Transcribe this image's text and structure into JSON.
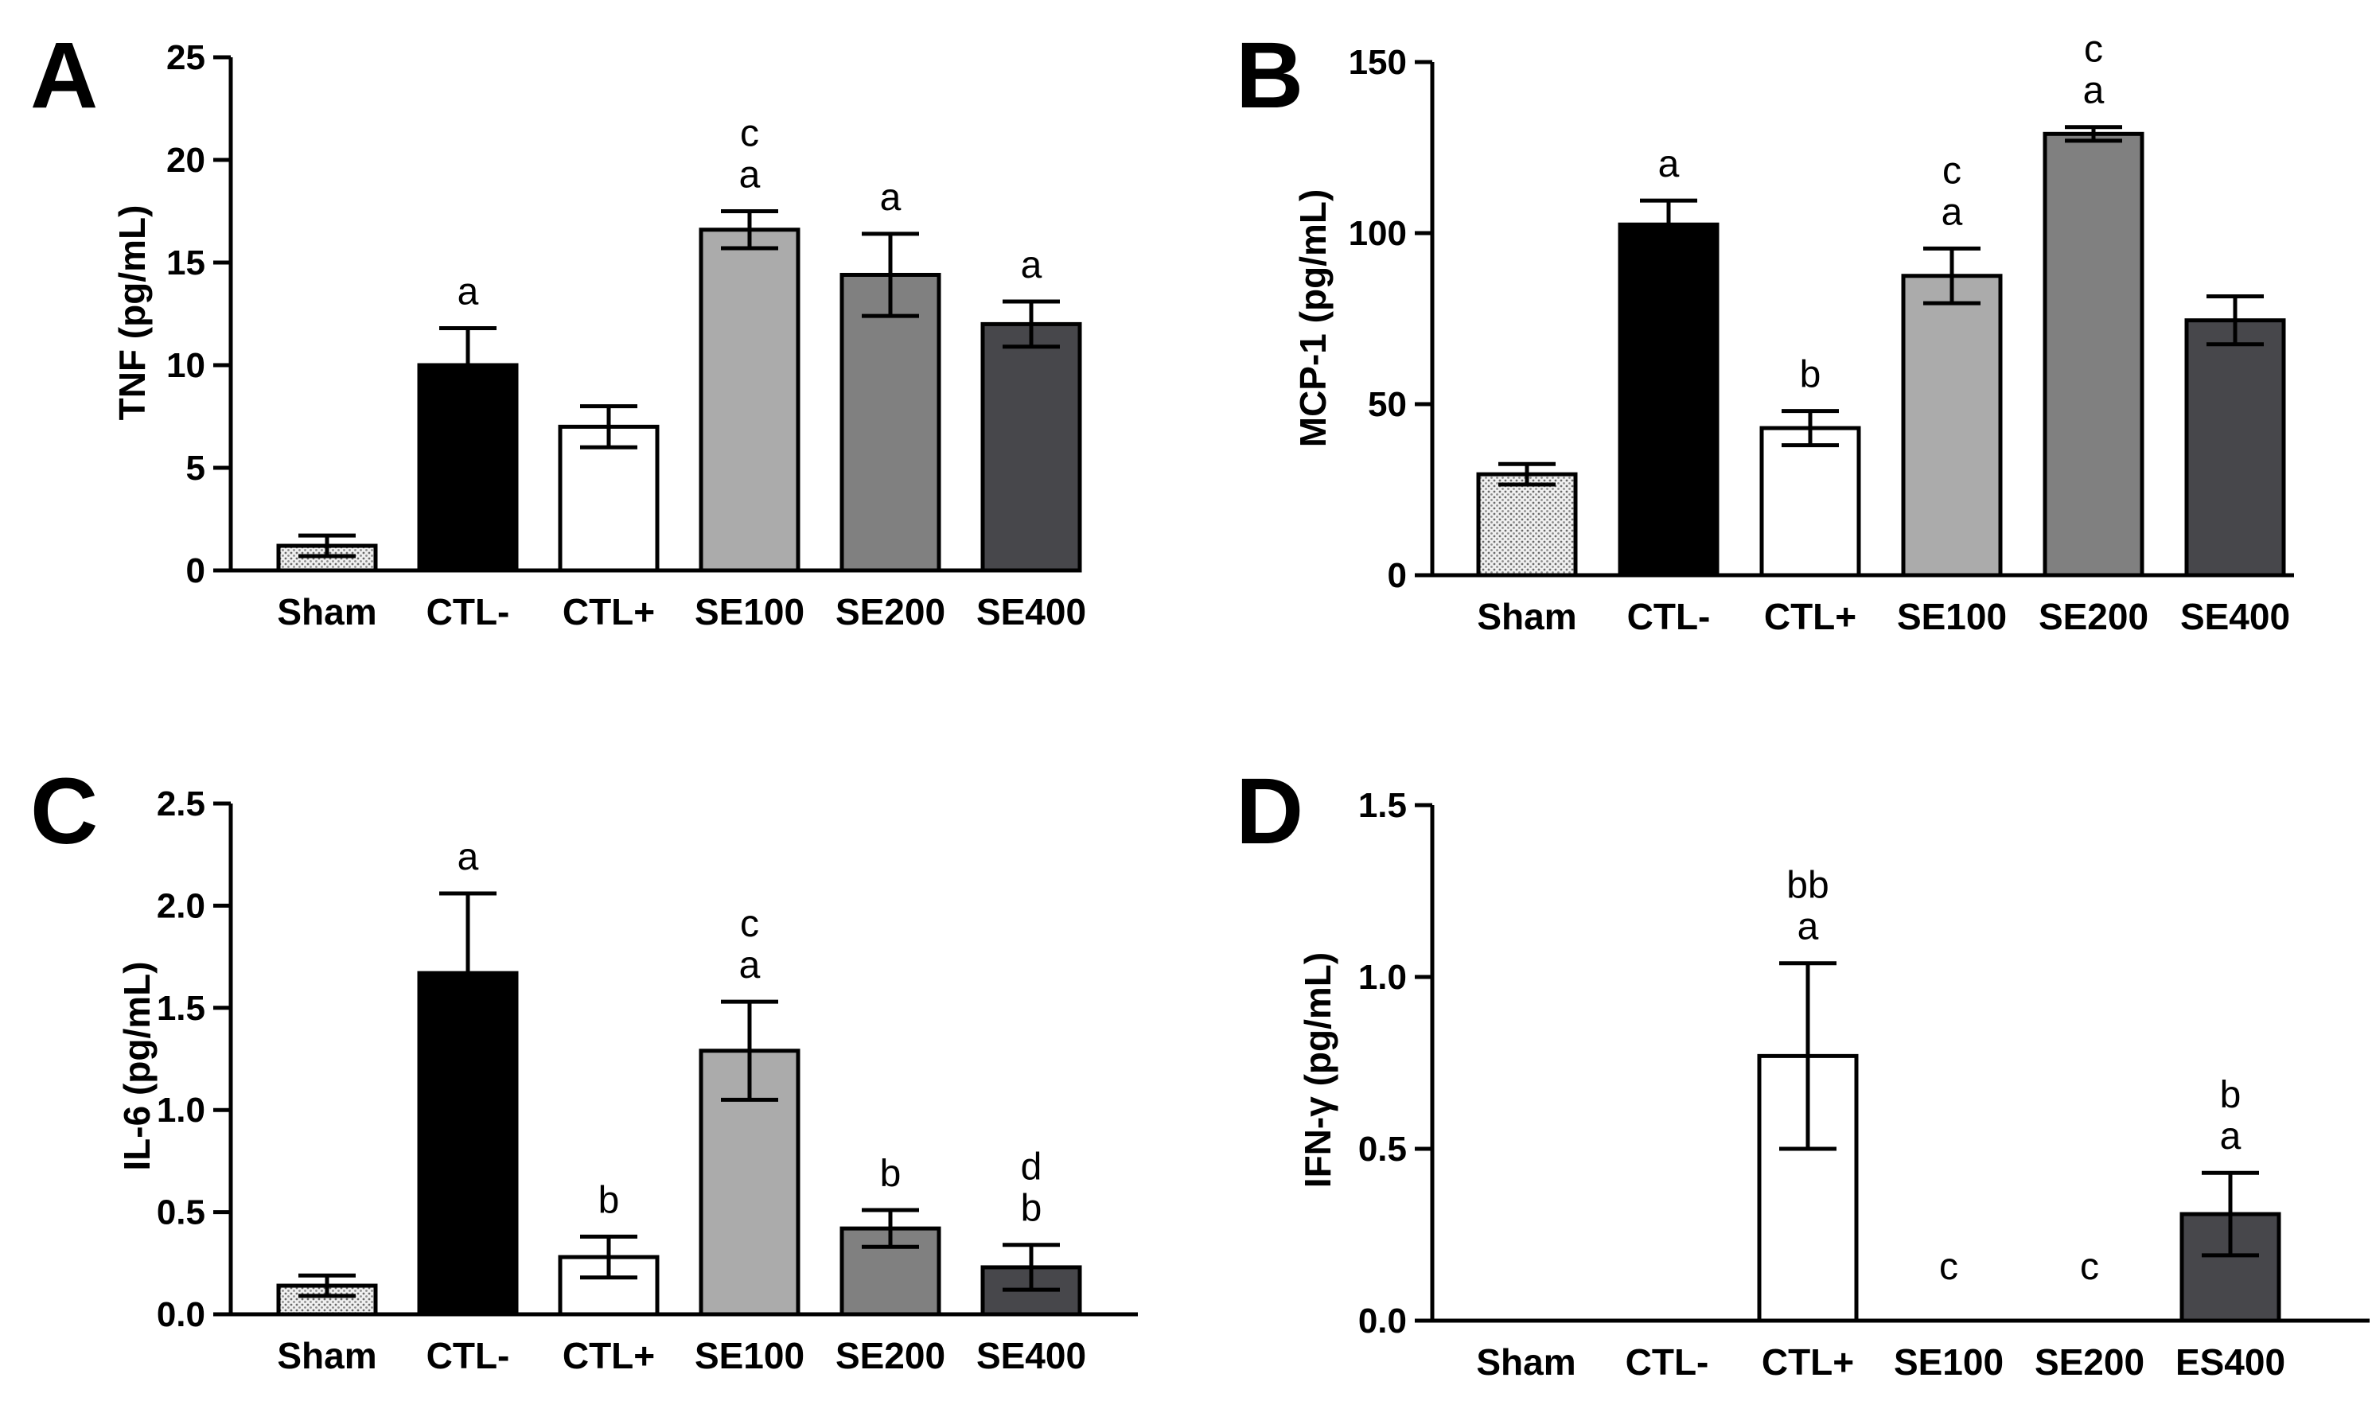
{
  "colors": {
    "Sham": "dotted-gray",
    "CTL-": "#000000",
    "CTL+": "#ffffff",
    "SE100": "#ababab",
    "SE200": "#808080",
    "SE400": "#47474b"
  },
  "chart_data": [
    {
      "panel": "A",
      "type": "bar",
      "ylabel": "TNF (pg/mL)",
      "ylim": [
        0,
        25
      ],
      "yticks": [
        "0",
        "5",
        "10",
        "15",
        "20",
        "25"
      ],
      "categories": [
        "Sham",
        "CTL-",
        "CTL+",
        "SE100",
        "SE200",
        "SE400"
      ],
      "values": [
        1.2,
        10.0,
        7.0,
        16.6,
        14.4,
        12.0
      ],
      "errors": [
        0.5,
        1.8,
        1.0,
        0.9,
        2.0,
        1.1
      ],
      "labels": [
        [],
        [
          "a"
        ],
        [],
        [
          "c",
          "a"
        ],
        [
          "a"
        ],
        [
          "a"
        ]
      ]
    },
    {
      "panel": "B",
      "type": "bar",
      "ylabel": "MCP-1 (pg/mL)",
      "ylim": [
        0,
        150
      ],
      "yticks": [
        "0",
        "50",
        "100",
        "150"
      ],
      "categories": [
        "Sham",
        "CTL-",
        "CTL+",
        "SE100",
        "SE200",
        "SE400"
      ],
      "values": [
        29.5,
        102.5,
        43.0,
        87.5,
        129.0,
        74.5
      ],
      "errors": [
        3.0,
        7.0,
        5.0,
        8.0,
        2.0,
        7.0
      ],
      "labels": [
        [],
        [
          "a"
        ],
        [
          "b"
        ],
        [
          "c",
          "a"
        ],
        [
          "c",
          "a"
        ],
        []
      ]
    },
    {
      "panel": "C",
      "type": "bar",
      "ylabel": "IL-6 (pg/mL)",
      "ylim": [
        0,
        2.5
      ],
      "yticks": [
        "0.0",
        "0.5",
        "1.0",
        "1.5",
        "2.0",
        "2.5"
      ],
      "categories": [
        "Sham",
        "CTL-",
        "CTL+",
        "SE100",
        "SE200",
        "SE400"
      ],
      "values": [
        0.14,
        1.67,
        0.28,
        1.29,
        0.42,
        0.23
      ],
      "errors": [
        0.05,
        0.39,
        0.1,
        0.24,
        0.09,
        0.11
      ],
      "labels": [
        [],
        [
          "a"
        ],
        [
          "b"
        ],
        [
          "c",
          "a"
        ],
        [
          "b"
        ],
        [
          "d",
          "b"
        ]
      ]
    },
    {
      "panel": "D",
      "type": "bar",
      "ylabel": "IFN-γ (pg/mL)",
      "ylim": [
        0,
        1.5
      ],
      "yticks": [
        "0.0",
        "0.5",
        "1.0",
        "1.5"
      ],
      "categories": [
        "Sham",
        "CTL-",
        "CTL+",
        "SE100",
        "SE200",
        "ES400"
      ],
      "values": [
        0,
        0,
        0.77,
        0,
        0,
        0.31
      ],
      "errors": [
        0,
        0,
        0.27,
        0,
        0,
        0.12
      ],
      "labels": [
        [],
        [],
        [
          "bb",
          "a"
        ],
        [
          "c"
        ],
        [
          "c"
        ],
        [
          "b",
          "a"
        ]
      ]
    }
  ]
}
